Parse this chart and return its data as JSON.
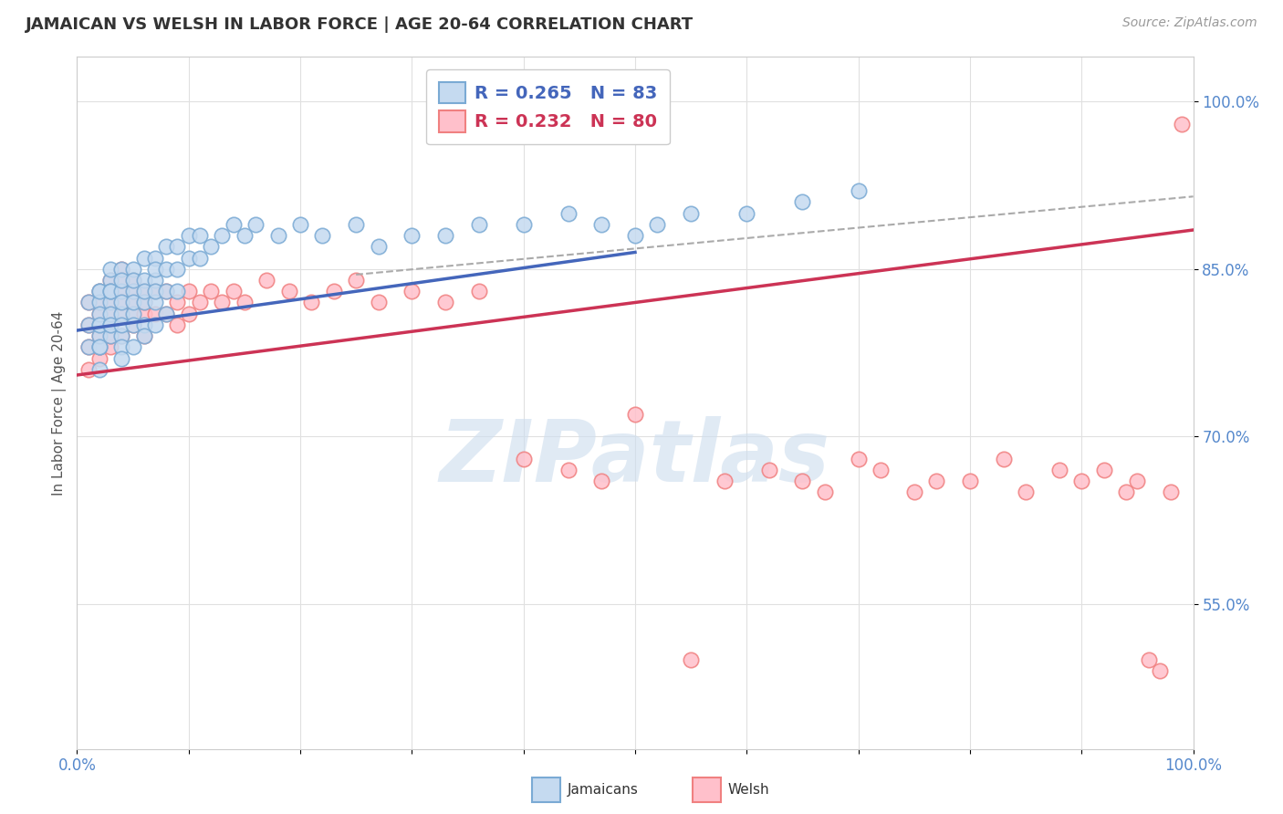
{
  "title": "JAMAICAN VS WELSH IN LABOR FORCE | AGE 20-64 CORRELATION CHART",
  "source_text": "Source: ZipAtlas.com",
  "ylabel": "In Labor Force | Age 20-64",
  "xlim": [
    0.0,
    1.0
  ],
  "ylim": [
    0.42,
    1.04
  ],
  "y_tick_labels": [
    "55.0%",
    "70.0%",
    "85.0%",
    "100.0%"
  ],
  "y_tick_values": [
    0.55,
    0.7,
    0.85,
    1.0
  ],
  "watermark_text": "ZIPatlas",
  "legend_blue_r": "R = 0.265",
  "legend_blue_n": "N = 83",
  "legend_pink_r": "R = 0.232",
  "legend_pink_n": "N = 80",
  "blue_edge": "#7aaad4",
  "blue_face": "#c5daf0",
  "pink_edge": "#f08080",
  "pink_face": "#ffc0cb",
  "trend_blue_color": "#4466bb",
  "trend_pink_color": "#cc3355",
  "trend_gray_color": "#aaaaaa",
  "jamaicans_x": [
    0.01,
    0.01,
    0.01,
    0.02,
    0.02,
    0.02,
    0.02,
    0.02,
    0.02,
    0.02,
    0.02,
    0.02,
    0.02,
    0.03,
    0.03,
    0.03,
    0.03,
    0.03,
    0.03,
    0.03,
    0.03,
    0.03,
    0.04,
    0.04,
    0.04,
    0.04,
    0.04,
    0.04,
    0.04,
    0.04,
    0.04,
    0.05,
    0.05,
    0.05,
    0.05,
    0.05,
    0.05,
    0.05,
    0.06,
    0.06,
    0.06,
    0.06,
    0.06,
    0.06,
    0.07,
    0.07,
    0.07,
    0.07,
    0.07,
    0.07,
    0.08,
    0.08,
    0.08,
    0.08,
    0.09,
    0.09,
    0.09,
    0.1,
    0.1,
    0.11,
    0.11,
    0.12,
    0.13,
    0.14,
    0.15,
    0.16,
    0.18,
    0.2,
    0.22,
    0.25,
    0.27,
    0.3,
    0.33,
    0.36,
    0.4,
    0.44,
    0.47,
    0.5,
    0.52,
    0.55,
    0.6,
    0.65,
    0.7
  ],
  "jamaicans_y": [
    0.8,
    0.82,
    0.78,
    0.83,
    0.82,
    0.8,
    0.78,
    0.81,
    0.79,
    0.83,
    0.8,
    0.78,
    0.76,
    0.84,
    0.82,
    0.8,
    0.85,
    0.83,
    0.81,
    0.79,
    0.83,
    0.8,
    0.85,
    0.83,
    0.81,
    0.79,
    0.84,
    0.82,
    0.8,
    0.78,
    0.77,
    0.85,
    0.83,
    0.81,
    0.8,
    0.78,
    0.84,
    0.82,
    0.86,
    0.84,
    0.82,
    0.8,
    0.79,
    0.83,
    0.86,
    0.84,
    0.82,
    0.8,
    0.85,
    0.83,
    0.87,
    0.85,
    0.83,
    0.81,
    0.87,
    0.85,
    0.83,
    0.88,
    0.86,
    0.88,
    0.86,
    0.87,
    0.88,
    0.89,
    0.88,
    0.89,
    0.88,
    0.89,
    0.88,
    0.89,
    0.87,
    0.88,
    0.88,
    0.89,
    0.89,
    0.9,
    0.89,
    0.88,
    0.89,
    0.9,
    0.9,
    0.91,
    0.92
  ],
  "welsh_x": [
    0.01,
    0.01,
    0.01,
    0.01,
    0.02,
    0.02,
    0.02,
    0.02,
    0.02,
    0.02,
    0.02,
    0.03,
    0.03,
    0.03,
    0.03,
    0.03,
    0.03,
    0.03,
    0.04,
    0.04,
    0.04,
    0.04,
    0.04,
    0.04,
    0.05,
    0.05,
    0.05,
    0.05,
    0.05,
    0.06,
    0.06,
    0.06,
    0.06,
    0.07,
    0.07,
    0.08,
    0.08,
    0.09,
    0.09,
    0.1,
    0.1,
    0.11,
    0.12,
    0.13,
    0.14,
    0.15,
    0.17,
    0.19,
    0.21,
    0.23,
    0.25,
    0.27,
    0.3,
    0.33,
    0.36,
    0.4,
    0.44,
    0.47,
    0.5,
    0.55,
    0.58,
    0.62,
    0.65,
    0.67,
    0.7,
    0.72,
    0.75,
    0.77,
    0.8,
    0.83,
    0.85,
    0.88,
    0.9,
    0.92,
    0.94,
    0.95,
    0.96,
    0.97,
    0.98,
    0.99
  ],
  "welsh_y": [
    0.82,
    0.8,
    0.78,
    0.76,
    0.83,
    0.81,
    0.79,
    0.77,
    0.82,
    0.8,
    0.78,
    0.84,
    0.82,
    0.8,
    0.78,
    0.83,
    0.81,
    0.79,
    0.85,
    0.83,
    0.81,
    0.79,
    0.84,
    0.82,
    0.84,
    0.82,
    0.8,
    0.83,
    0.81,
    0.83,
    0.81,
    0.79,
    0.82,
    0.83,
    0.81,
    0.83,
    0.81,
    0.82,
    0.8,
    0.83,
    0.81,
    0.82,
    0.83,
    0.82,
    0.83,
    0.82,
    0.84,
    0.83,
    0.82,
    0.83,
    0.84,
    0.82,
    0.83,
    0.82,
    0.83,
    0.68,
    0.67,
    0.66,
    0.72,
    0.5,
    0.66,
    0.67,
    0.66,
    0.65,
    0.68,
    0.67,
    0.65,
    0.66,
    0.66,
    0.68,
    0.65,
    0.67,
    0.66,
    0.67,
    0.65,
    0.66,
    0.5,
    0.49,
    0.65,
    0.98
  ],
  "blue_trend_x": [
    0.0,
    0.5
  ],
  "blue_trend_y_start": 0.795,
  "blue_trend_y_end": 0.865,
  "pink_trend_x": [
    0.0,
    1.0
  ],
  "pink_trend_y_start": 0.755,
  "pink_trend_y_end": 0.885,
  "gray_trend_x": [
    0.25,
    1.0
  ],
  "gray_trend_y_start": 0.845,
  "gray_trend_y_end": 0.915
}
